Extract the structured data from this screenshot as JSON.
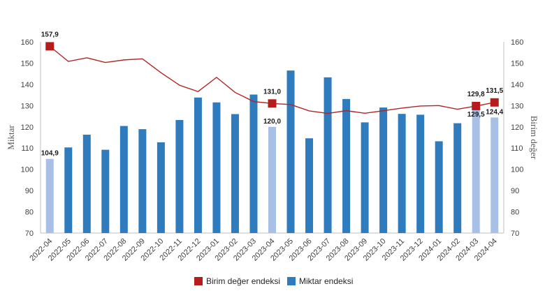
{
  "chart_data": {
    "type": "bar+line",
    "categories": [
      "2022-04",
      "2022-05",
      "2022-06",
      "2022-07",
      "2022-08",
      "2022-09",
      "2022-10",
      "2022-11",
      "2022-12",
      "2023-01",
      "2023-02",
      "2023-03",
      "2023-04",
      "2023-05",
      "2023-06",
      "2023-07",
      "2023-08",
      "2023-09",
      "2023-10",
      "2023-11",
      "2023-12",
      "2024-01",
      "2024-02",
      "2024-03",
      "2024-04"
    ],
    "series": [
      {
        "name": "Miktar endeksi",
        "type": "bar",
        "axis": "left",
        "values": [
          104.9,
          110.3,
          116.3,
          109.2,
          120.4,
          118.9,
          112.7,
          123.2,
          133.8,
          131.5,
          126.0,
          135.2,
          120.0,
          146.5,
          114.6,
          143.3,
          133.1,
          122.1,
          129.1,
          126.1,
          125.7,
          113.2,
          121.7,
          129.5,
          124.4
        ],
        "highlighted": [
          "2022-04",
          "2023-04",
          "2024-03",
          "2024-04"
        ]
      },
      {
        "name": "Birim değer endeksi",
        "type": "line",
        "axis": "right",
        "values": [
          157.9,
          150.8,
          152.5,
          150.3,
          151.5,
          152.0,
          145.5,
          139.6,
          136.6,
          143.3,
          136.2,
          131.9,
          131.0,
          130.5,
          127.5,
          126.3,
          127.6,
          126.4,
          127.6,
          128.8,
          129.8,
          130.0,
          128.3,
          129.8,
          131.5
        ],
        "markers": [
          "2022-04",
          "2023-04",
          "2024-03",
          "2024-04"
        ]
      }
    ],
    "data_labels": [
      {
        "category": "2022-04",
        "series": "Birim değer endeksi",
        "text": "157,9"
      },
      {
        "category": "2022-04",
        "series": "Miktar endeksi",
        "text": "104,9"
      },
      {
        "category": "2023-04",
        "series": "Birim değer endeksi",
        "text": "131,0"
      },
      {
        "category": "2023-04",
        "series": "Miktar endeksi",
        "text": "120,0"
      },
      {
        "category": "2024-03",
        "series": "Birim değer endeksi",
        "text": "129,8"
      },
      {
        "category": "2024-03",
        "series": "Miktar endeksi",
        "text": "129,5"
      },
      {
        "category": "2024-04",
        "series": "Birim değer endeksi",
        "text": "131,5"
      },
      {
        "category": "2024-04",
        "series": "Miktar endeksi",
        "text": "124,4"
      }
    ],
    "ylabel_left": "Miktar",
    "ylabel_right": "Birim değer",
    "ylim": [
      70,
      160
    ],
    "yticks": [
      "70",
      "80",
      "90",
      "100",
      "110",
      "120",
      "130",
      "140",
      "150",
      "160"
    ],
    "grid": false,
    "legend_position": "bottom",
    "legend": [
      "Birim değer endeksi",
      "Miktar endeksi"
    ],
    "colors": {
      "bar": "#2e7bbd",
      "bar_highlight": "#a8c0e6",
      "line": "#b22424",
      "marker": "#b51c1c",
      "axis": "#bfbfbf"
    }
  }
}
